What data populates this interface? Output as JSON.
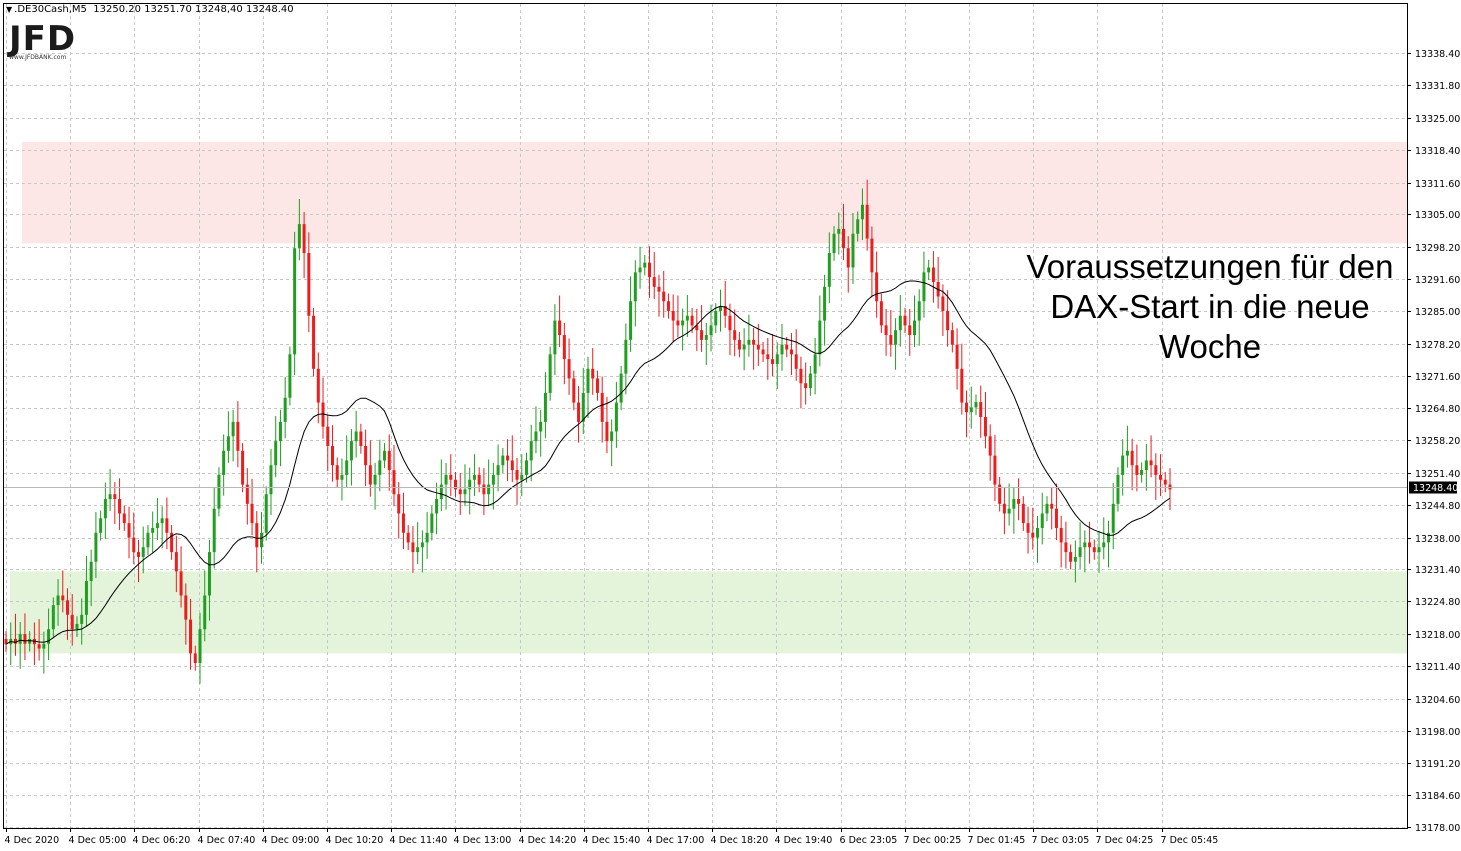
{
  "header": {
    "symbol": ".DE30Cash,M5",
    "ohlc": "13250.20 13251.70 13248,40 13248.40"
  },
  "logo": {
    "mark": "JFD",
    "url": "www.JFDBANK.com"
  },
  "annotation": {
    "lines": [
      "Voraussetzungen für den",
      "DAX-Start in die neue",
      "Woche"
    ]
  },
  "colors": {
    "bull": "#1f9e1f",
    "bear": "#ee1c1c",
    "resistance_zone": "#fde6e6",
    "support_zone": "#e3f4da",
    "moving_average": "#000000",
    "grid": "#c8c8c8"
  },
  "chart_data": {
    "type": "candlestick",
    "timeframe": "M5",
    "current_price": "13248.40",
    "ylim": [
      13178.0,
      13342.0
    ],
    "y_ticks": [
      "13338.40",
      "13331.80",
      "13325.00",
      "13318.40",
      "13311.60",
      "13305.00",
      "13298.20",
      "13291.60",
      "13285.00",
      "13278.20",
      "13271.60",
      "13264.80",
      "13258.20",
      "13251.40",
      "13244.80",
      "13238.00",
      "13231.40",
      "13224.80",
      "13218.00",
      "13211.40",
      "13204.60",
      "13198.00",
      "13191.20",
      "13184.60",
      "13178.00"
    ],
    "x_ticks": [
      "4 Dec 2020",
      "4 Dec 05:00",
      "4 Dec 06:20",
      "4 Dec 07:40",
      "4 Dec 09:00",
      "4 Dec 10:20",
      "4 Dec 11:40",
      "4 Dec 13:00",
      "4 Dec 14:20",
      "4 Dec 15:40",
      "4 Dec 17:00",
      "4 Dec 18:20",
      "4 Dec 19:40",
      "6 Dec 23:05",
      "7 Dec 00:25",
      "7 Dec 01:45",
      "7 Dec 03:05",
      "7 Dec 04:25",
      "7 Dec 05:45"
    ],
    "zones": [
      {
        "name": "resistance",
        "from": 13299.0,
        "to": 13320.0
      },
      {
        "name": "support",
        "from": 13214.0,
        "to": 13231.0
      }
    ],
    "close_series": [
      13217,
      13217,
      13216,
      13218,
      13216,
      13217,
      13217,
      13215,
      13216,
      13219,
      13224,
      13226,
      13225,
      13222,
      13219,
      13219,
      13222,
      13229,
      13233,
      13239,
      13242,
      13246,
      13247,
      13246,
      13243,
      13241,
      13238,
      13235,
      13234,
      13236,
      13239,
      13240,
      13241,
      13242,
      13239,
      13235,
      13231,
      13226,
      13221,
      13214,
      13212,
      13219,
      13226,
      13235,
      13244,
      13251,
      13256,
      13259,
      13262,
      13256,
      13249,
      13245,
      13241,
      13236,
      13239,
      13247,
      13253,
      13258,
      13262,
      13267,
      13276,
      13298,
      13303,
      13297,
      13284,
      13273,
      13266,
      13261,
      13257,
      13253,
      13250,
      13251,
      13254,
      13258,
      13260,
      13257,
      13253,
      13249,
      13251,
      13254,
      13256,
      13252,
      13247,
      13243,
      13239,
      13237,
      13235,
      13236,
      13237,
      13239,
      13243,
      13246,
      13249,
      13251,
      13250,
      13248,
      13247,
      13248,
      13250,
      13251,
      13249,
      13247,
      13249,
      13251,
      13253,
      13255,
      13254,
      13252,
      13250,
      13251,
      13254,
      13258,
      13260,
      13262,
      13268,
      13276,
      13283,
      13280,
      13275,
      13271,
      13266,
      13262,
      13268,
      13273,
      13271,
      13268,
      13262,
      13258,
      13260,
      13266,
      13272,
      13279,
      13287,
      13293,
      13294,
      13295,
      13292,
      13290,
      13289,
      13287,
      13285,
      13283,
      13282,
      13283,
      13284,
      13282,
      13281,
      13279,
      13280,
      13282,
      13285,
      13286,
      13284,
      13281,
      13279,
      13277,
      13278,
      13279,
      13278,
      13277,
      13276,
      13275,
      13274,
      13276,
      13278,
      13277,
      13276,
      13273,
      13270,
      13269,
      13272,
      13276,
      13283,
      13290,
      13297,
      13301,
      13302,
      13298,
      13294,
      13301,
      13304,
      13307,
      13300,
      13293,
      13287,
      13282,
      13280,
      13278,
      13281,
      13284,
      13282,
      13280,
      13283,
      13287,
      13293,
      13294,
      13291,
      13288,
      13285,
      13281,
      13278,
      13273,
      13266,
      13264,
      13265,
      13265,
      13263,
      13259,
      13255,
      13249,
      13245,
      13243,
      13244,
      13246,
      13245,
      13241,
      13239,
      13238,
      13240,
      13243,
      13245,
      13244,
      13240,
      13237,
      13235,
      13233,
      13234,
      13236,
      13237,
      13236,
      13235,
      13236,
      13237,
      13239,
      13245,
      13251,
      13255,
      13256,
      13253,
      13251,
      13252,
      13254,
      13253,
      13251,
      13250,
      13249,
      13248
    ]
  }
}
